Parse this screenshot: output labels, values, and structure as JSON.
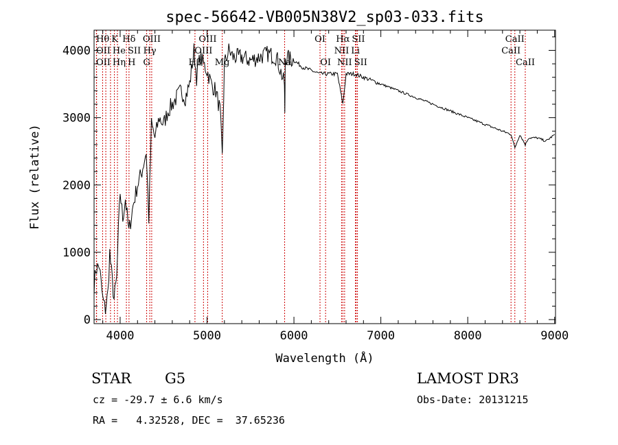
{
  "chart_data": {
    "type": "line",
    "title": "spec-56642-VB005N38V2_sp03-033.fits",
    "xlabel": "Wavelength (Å)",
    "ylabel": "Flux (relative)",
    "xlim": [
      3700,
      9010
    ],
    "ylim": [
      -60,
      4300
    ],
    "xticks": [
      4000,
      5000,
      6000,
      7000,
      8000,
      9000
    ],
    "xtick_labels": [
      "4000",
      "5000",
      "6000",
      "7000",
      "8000",
      "9000"
    ],
    "yticks": [
      0,
      1000,
      2000,
      3000,
      4000
    ],
    "ytick_labels": [
      "0",
      "1000",
      "2000",
      "3000",
      "4000"
    ],
    "grid": false,
    "series": [
      {
        "name": "spectrum",
        "color": "#000000",
        "x": [
          3700,
          3720,
          3760,
          3800,
          3830,
          3860,
          3880,
          3900,
          3930,
          3960,
          3980,
          4000,
          4030,
          4060,
          4100,
          4150,
          4200,
          4250,
          4300,
          4330,
          4360,
          4400,
          4450,
          4500,
          4550,
          4600,
          4650,
          4700,
          4750,
          4800,
          4850,
          4880,
          4920,
          5000,
          5050,
          5100,
          5150,
          5175,
          5200,
          5250,
          5300,
          5400,
          5500,
          5600,
          5700,
          5800,
          5890,
          5895,
          5900,
          6000,
          6100,
          6200,
          6300,
          6400,
          6500,
          6563,
          6600,
          6700,
          6800,
          7000,
          7200,
          7400,
          7600,
          7800,
          8000,
          8200,
          8400,
          8500,
          8542,
          8600,
          8662,
          8700,
          8800,
          8900,
          9000
        ],
        "y": [
          500,
          750,
          800,
          300,
          150,
          400,
          1000,
          700,
          300,
          600,
          1300,
          1900,
          1500,
          1800,
          1300,
          1700,
          2000,
          2200,
          2500,
          1500,
          2900,
          2700,
          3000,
          2900,
          3100,
          3200,
          3300,
          3400,
          3300,
          3500,
          4000,
          3600,
          3900,
          3700,
          3500,
          3400,
          3100,
          2400,
          3800,
          4000,
          3900,
          3900,
          3850,
          3900,
          3950,
          3900,
          3500,
          3000,
          3900,
          3850,
          3750,
          3700,
          3650,
          3650,
          3650,
          3200,
          3650,
          3650,
          3600,
          3500,
          3400,
          3300,
          3200,
          3100,
          3000,
          2900,
          2800,
          2750,
          2550,
          2750,
          2600,
          2700,
          2700,
          2650,
          2750
        ]
      }
    ],
    "line_color": "#cc0000",
    "lines": [
      {
        "label": "Hθ",
        "wave": 3798,
        "row": 0
      },
      {
        "label": "OII",
        "wave": 3727,
        "row": 1
      },
      {
        "label": "OII",
        "wave": 3729,
        "row": 2
      },
      {
        "label": "K",
        "wave": 3934,
        "row": 0
      },
      {
        "label": "He",
        "wave": 3889,
        "row": 1
      },
      {
        "label": "Hη",
        "wave": 3835,
        "row": 2
      },
      {
        "label": "Hδ",
        "wave": 4102,
        "row": 0
      },
      {
        "label": "SII",
        "wave": 4072,
        "row": 1
      },
      {
        "label": "H",
        "wave": 3969,
        "row": 2
      },
      {
        "label": "OIII",
        "wave": 4363,
        "row": 0
      },
      {
        "label": "Hγ",
        "wave": 4341,
        "row": 1
      },
      {
        "label": "G",
        "wave": 4305,
        "row": 2
      },
      {
        "label": "OIII",
        "wave": 5007,
        "row": 0
      },
      {
        "label": "OIII",
        "wave": 4959,
        "row": 1
      },
      {
        "label": "Hβ",
        "wave": 4861,
        "row": 2
      },
      {
        "label": "Mg",
        "wave": 5175,
        "row": 2
      },
      {
        "label": "Na",
        "wave": 5893,
        "row": 2
      },
      {
        "label": "OI",
        "wave": 6300,
        "row": 0
      },
      {
        "label": "OI",
        "wave": 6364,
        "row": 2
      },
      {
        "label": "Hα",
        "wave": 6563,
        "row": 0
      },
      {
        "label": "NII",
        "wave": 6548,
        "row": 1
      },
      {
        "label": "NII",
        "wave": 6583,
        "row": 2
      },
      {
        "label": "SII",
        "wave": 6716,
        "row": 0
      },
      {
        "label": "Li",
        "wave": 6708,
        "row": 1
      },
      {
        "label": "SII",
        "wave": 6731,
        "row": 2
      },
      {
        "label": "CaII",
        "wave": 8542,
        "row": 0
      },
      {
        "label": "CaII",
        "wave": 8498,
        "row": 1
      },
      {
        "label": "CaII",
        "wave": 8662,
        "row": 2
      }
    ]
  },
  "info": {
    "class": "STAR",
    "subclass": "G5",
    "survey": "LAMOST DR3",
    "cz": "cz = -29.7 ± 6.6 km/s",
    "obsdate": "Obs-Date: 20131215",
    "radec": "RA =   4.32528, DEC =  37.65236"
  }
}
